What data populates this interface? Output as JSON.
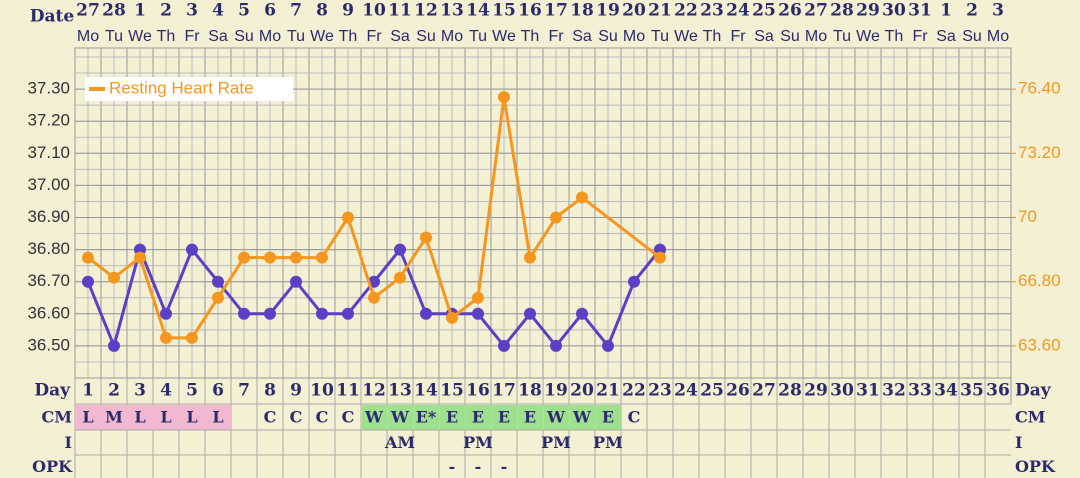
{
  "chart_data": {
    "type": "line",
    "header_label": "Date",
    "dates": [
      27,
      28,
      1,
      2,
      3,
      4,
      5,
      6,
      7,
      8,
      9,
      10,
      11,
      12,
      13,
      14,
      15,
      16,
      17,
      18,
      19,
      20,
      21,
      22,
      23,
      24,
      25,
      26,
      27,
      28,
      29,
      30,
      31,
      1,
      2,
      3
    ],
    "weekdays": [
      "Mo",
      "Tu",
      "We",
      "Th",
      "Fr",
      "Sa",
      "Su",
      "Mo",
      "Tu",
      "We",
      "Th",
      "Fr",
      "Sa",
      "Su",
      "Mo",
      "Tu",
      "We",
      "Th",
      "Fr",
      "Sa",
      "Su",
      "Mo",
      "Tu",
      "We",
      "Th",
      "Fr",
      "Sa",
      "Su",
      "Mo",
      "Tu",
      "We",
      "Th",
      "Fr",
      "Sa",
      "Su",
      "Mo"
    ],
    "day_label": "Day",
    "days": [
      1,
      2,
      3,
      4,
      5,
      6,
      7,
      8,
      9,
      10,
      11,
      12,
      13,
      14,
      15,
      16,
      17,
      18,
      19,
      20,
      21,
      22,
      23,
      24,
      25,
      26,
      27,
      28,
      29,
      30,
      31,
      32,
      33,
      34,
      35,
      36
    ],
    "ylim": [
      36.4,
      37.4
    ],
    "yticks": [
      {
        "value": 36.5,
        "label": "36.50"
      },
      {
        "value": 36.6,
        "label": "36.60"
      },
      {
        "value": 36.7,
        "label": "36.70"
      },
      {
        "value": 36.8,
        "label": "36.80"
      },
      {
        "value": 36.9,
        "label": "36.90"
      },
      {
        "value": 37.0,
        "label": "37.00"
      },
      {
        "value": 37.1,
        "label": "37.10"
      },
      {
        "value": 37.2,
        "label": "37.20"
      },
      {
        "value": 37.3,
        "label": "37.30"
      }
    ],
    "y2lim": [
      62,
      78
    ],
    "y2ticks": [
      {
        "value": 63.6,
        "label": "63.60"
      },
      {
        "value": 66.8,
        "label": "66.80"
      },
      70,
      {
        "value": 73.2,
        "label": "73.20"
      },
      {
        "value": 76.4,
        "label": "76.40"
      }
    ],
    "grid": true,
    "legend": "upper left",
    "series": [
      {
        "color": "#5b3fc4",
        "values": [
          36.7,
          36.5,
          36.8,
          36.6,
          36.8,
          36.7,
          36.6,
          36.6,
          36.7,
          36.6,
          36.6,
          36.7,
          36.8,
          36.6,
          36.6,
          36.6,
          36.5,
          36.6,
          36.5,
          36.6,
          36.5,
          36.7,
          36.8,
          null,
          null,
          null,
          null,
          null,
          null,
          null,
          null,
          null,
          null,
          null,
          null,
          null
        ]
      },
      {
        "name": "Resting Heart Rate",
        "color": "#f5961e",
        "axis": "y2",
        "values": [
          68,
          67,
          68,
          64,
          64,
          66,
          68,
          68,
          68,
          68,
          70,
          66,
          67,
          69,
          65,
          66,
          76,
          68,
          70,
          71,
          null,
          null,
          68,
          null,
          null,
          null,
          null,
          null,
          null,
          null,
          null,
          null,
          null,
          null,
          null,
          null
        ]
      }
    ],
    "rows": [
      {
        "label": "CM",
        "values": [
          "L",
          "M",
          "L",
          "L",
          "L",
          "L",
          null,
          "C",
          "C",
          "C",
          "C",
          "W",
          "W",
          "E*",
          "E",
          "E",
          "E",
          "E",
          "W",
          "W",
          "E",
          "C",
          null,
          null,
          null,
          null,
          null,
          null,
          null,
          null,
          null,
          null,
          null,
          null,
          null,
          null
        ],
        "colors": [
          "#f2b8d2",
          "#f2b8d2",
          "#f2b8d2",
          "#f2b8d2",
          "#f2b8d2",
          "#f2b8d2",
          null,
          null,
          null,
          null,
          null,
          "#9fe08f",
          "#9fe08f",
          "#9fe08f",
          "#9fe08f",
          "#9fe08f",
          "#9fe08f",
          "#9fe08f",
          "#9fe08f",
          "#9fe08f",
          "#9fe08f",
          null,
          null,
          null,
          null,
          null,
          null,
          null,
          null,
          null,
          null,
          null,
          null,
          null,
          null,
          null
        ]
      },
      {
        "label": "I",
        "values": [
          null,
          null,
          null,
          null,
          null,
          null,
          null,
          null,
          null,
          null,
          null,
          null,
          "AM",
          null,
          null,
          "PM",
          null,
          null,
          "PM",
          null,
          "PM",
          null,
          null,
          null,
          null,
          null,
          null,
          null,
          null,
          null,
          null,
          null,
          null,
          null,
          null,
          null
        ]
      },
      {
        "label": "OPK",
        "values": [
          null,
          null,
          null,
          null,
          null,
          null,
          null,
          null,
          null,
          null,
          null,
          null,
          null,
          null,
          "-",
          "-",
          "-",
          null,
          null,
          null,
          null,
          null,
          null,
          null,
          null,
          null,
          null,
          null,
          null,
          null,
          null,
          null,
          null,
          null,
          null,
          null
        ]
      }
    ]
  }
}
